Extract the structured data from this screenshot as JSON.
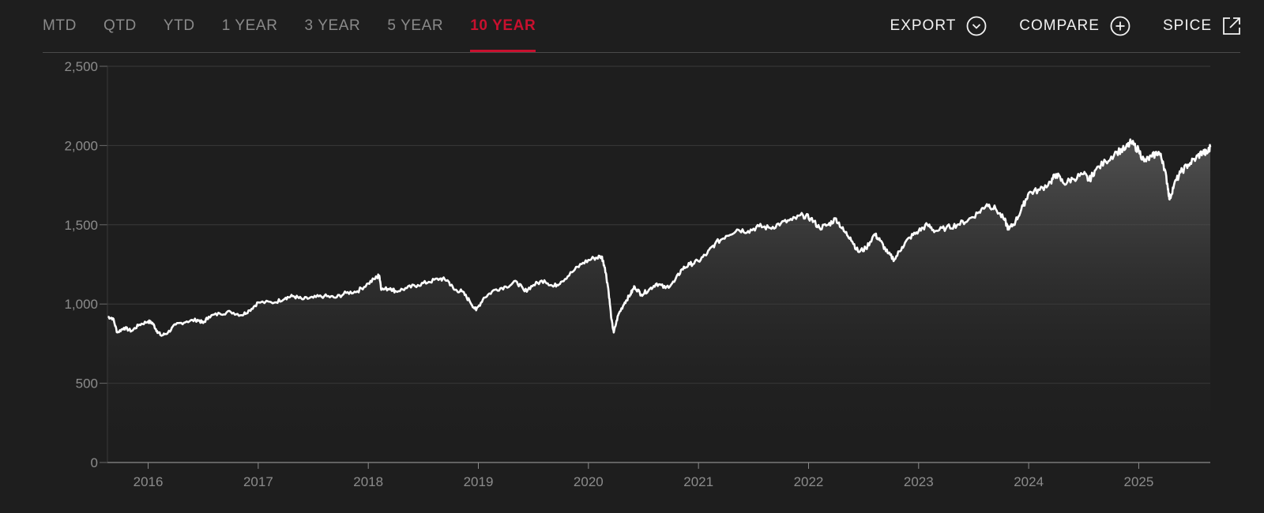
{
  "tabs": [
    {
      "label": "MTD",
      "active": false
    },
    {
      "label": "QTD",
      "active": false
    },
    {
      "label": "YTD",
      "active": false
    },
    {
      "label": "1 YEAR",
      "active": false
    },
    {
      "label": "3 YEAR",
      "active": false
    },
    {
      "label": "5 YEAR",
      "active": false
    },
    {
      "label": "10 YEAR",
      "active": true
    }
  ],
  "actions": {
    "export": {
      "label": "EXPORT",
      "icon": "chevron-down-circle-icon"
    },
    "compare": {
      "label": "COMPARE",
      "icon": "plus-circle-icon"
    },
    "spice": {
      "label": "SPICE",
      "icon": "external-link-icon"
    }
  },
  "colors": {
    "background": "#1e1e1e",
    "accent": "#c8102e",
    "line": "#ffffff",
    "grid": "#3a3a3a"
  },
  "chart_data": {
    "type": "area",
    "ylim": [
      0,
      2500
    ],
    "yticks": [
      {
        "value": 0,
        "label": "0"
      },
      {
        "value": 500,
        "label": "500"
      },
      {
        "value": 1000,
        "label": "1,000"
      },
      {
        "value": 1500,
        "label": "1,500"
      },
      {
        "value": 2000,
        "label": "2,000"
      },
      {
        "value": 2500,
        "label": "2,500"
      }
    ],
    "xlim": [
      2015.63,
      2025.65
    ],
    "xticks": [
      {
        "value": 2016,
        "label": "2016"
      },
      {
        "value": 2017,
        "label": "2017"
      },
      {
        "value": 2018,
        "label": "2018"
      },
      {
        "value": 2019,
        "label": "2019"
      },
      {
        "value": 2020,
        "label": "2020"
      },
      {
        "value": 2021,
        "label": "2021"
      },
      {
        "value": 2022,
        "label": "2022"
      },
      {
        "value": 2023,
        "label": "2023"
      },
      {
        "value": 2024,
        "label": "2024"
      },
      {
        "value": 2025,
        "label": "2025"
      }
    ],
    "grid": true,
    "series": [
      {
        "points": [
          [
            2015.63,
            920
          ],
          [
            2015.68,
            910
          ],
          [
            2015.72,
            820
          ],
          [
            2015.78,
            850
          ],
          [
            2015.85,
            830
          ],
          [
            2015.92,
            870
          ],
          [
            2016.0,
            890
          ],
          [
            2016.04,
            880
          ],
          [
            2016.08,
            830
          ],
          [
            2016.12,
            800
          ],
          [
            2016.18,
            820
          ],
          [
            2016.25,
            870
          ],
          [
            2016.35,
            890
          ],
          [
            2016.45,
            900
          ],
          [
            2016.5,
            880
          ],
          [
            2016.55,
            920
          ],
          [
            2016.65,
            940
          ],
          [
            2016.75,
            950
          ],
          [
            2016.85,
            930
          ],
          [
            2016.92,
            960
          ],
          [
            2017.0,
            1010
          ],
          [
            2017.15,
            1010
          ],
          [
            2017.25,
            1040
          ],
          [
            2017.32,
            1050
          ],
          [
            2017.4,
            1030
          ],
          [
            2017.5,
            1040
          ],
          [
            2017.6,
            1050
          ],
          [
            2017.7,
            1040
          ],
          [
            2017.8,
            1070
          ],
          [
            2017.9,
            1080
          ],
          [
            2018.0,
            1130
          ],
          [
            2018.08,
            1170
          ],
          [
            2018.1,
            1180
          ],
          [
            2018.12,
            1090
          ],
          [
            2018.2,
            1100
          ],
          [
            2018.25,
            1080
          ],
          [
            2018.35,
            1100
          ],
          [
            2018.45,
            1120
          ],
          [
            2018.55,
            1140
          ],
          [
            2018.65,
            1160
          ],
          [
            2018.72,
            1150
          ],
          [
            2018.78,
            1090
          ],
          [
            2018.85,
            1080
          ],
          [
            2018.92,
            1020
          ],
          [
            2018.98,
            960
          ],
          [
            2019.05,
            1040
          ],
          [
            2019.15,
            1090
          ],
          [
            2019.25,
            1110
          ],
          [
            2019.35,
            1140
          ],
          [
            2019.42,
            1080
          ],
          [
            2019.5,
            1120
          ],
          [
            2019.6,
            1150
          ],
          [
            2019.68,
            1110
          ],
          [
            2019.75,
            1140
          ],
          [
            2019.85,
            1200
          ],
          [
            2019.95,
            1260
          ],
          [
            2020.05,
            1290
          ],
          [
            2020.12,
            1300
          ],
          [
            2020.15,
            1230
          ],
          [
            2020.18,
            1100
          ],
          [
            2020.21,
            900
          ],
          [
            2020.23,
            820
          ],
          [
            2020.27,
            930
          ],
          [
            2020.33,
            1010
          ],
          [
            2020.38,
            1060
          ],
          [
            2020.42,
            1110
          ],
          [
            2020.48,
            1060
          ],
          [
            2020.55,
            1090
          ],
          [
            2020.62,
            1130
          ],
          [
            2020.7,
            1100
          ],
          [
            2020.78,
            1140
          ],
          [
            2020.85,
            1220
          ],
          [
            2020.92,
            1250
          ],
          [
            2021.0,
            1270
          ],
          [
            2021.08,
            1320
          ],
          [
            2021.15,
            1380
          ],
          [
            2021.25,
            1430
          ],
          [
            2021.35,
            1470
          ],
          [
            2021.45,
            1460
          ],
          [
            2021.55,
            1490
          ],
          [
            2021.65,
            1480
          ],
          [
            2021.75,
            1510
          ],
          [
            2021.85,
            1530
          ],
          [
            2021.95,
            1560
          ],
          [
            2022.02,
            1540
          ],
          [
            2022.1,
            1480
          ],
          [
            2022.18,
            1500
          ],
          [
            2022.25,
            1540
          ],
          [
            2022.32,
            1460
          ],
          [
            2022.38,
            1420
          ],
          [
            2022.45,
            1330
          ],
          [
            2022.52,
            1350
          ],
          [
            2022.6,
            1440
          ],
          [
            2022.65,
            1400
          ],
          [
            2022.72,
            1320
          ],
          [
            2022.78,
            1280
          ],
          [
            2022.85,
            1360
          ],
          [
            2022.92,
            1420
          ],
          [
            2023.0,
            1460
          ],
          [
            2023.08,
            1500
          ],
          [
            2023.15,
            1460
          ],
          [
            2023.25,
            1480
          ],
          [
            2023.35,
            1500
          ],
          [
            2023.45,
            1530
          ],
          [
            2023.55,
            1580
          ],
          [
            2023.62,
            1630
          ],
          [
            2023.7,
            1600
          ],
          [
            2023.78,
            1530
          ],
          [
            2023.82,
            1470
          ],
          [
            2023.88,
            1520
          ],
          [
            2023.95,
            1620
          ],
          [
            2024.0,
            1700
          ],
          [
            2024.1,
            1720
          ],
          [
            2024.2,
            1770
          ],
          [
            2024.25,
            1820
          ],
          [
            2024.32,
            1760
          ],
          [
            2024.4,
            1790
          ],
          [
            2024.5,
            1820
          ],
          [
            2024.55,
            1780
          ],
          [
            2024.6,
            1840
          ],
          [
            2024.7,
            1900
          ],
          [
            2024.8,
            1960
          ],
          [
            2024.88,
            1980
          ],
          [
            2024.93,
            2020
          ],
          [
            2025.0,
            1970
          ],
          [
            2025.05,
            1900
          ],
          [
            2025.12,
            1930
          ],
          [
            2025.18,
            1960
          ],
          [
            2025.22,
            1900
          ],
          [
            2025.26,
            1760
          ],
          [
            2025.28,
            1660
          ],
          [
            2025.32,
            1750
          ],
          [
            2025.38,
            1830
          ],
          [
            2025.45,
            1880
          ],
          [
            2025.52,
            1920
          ],
          [
            2025.58,
            1960
          ],
          [
            2025.62,
            1950
          ],
          [
            2025.65,
            1990
          ]
        ]
      }
    ]
  }
}
